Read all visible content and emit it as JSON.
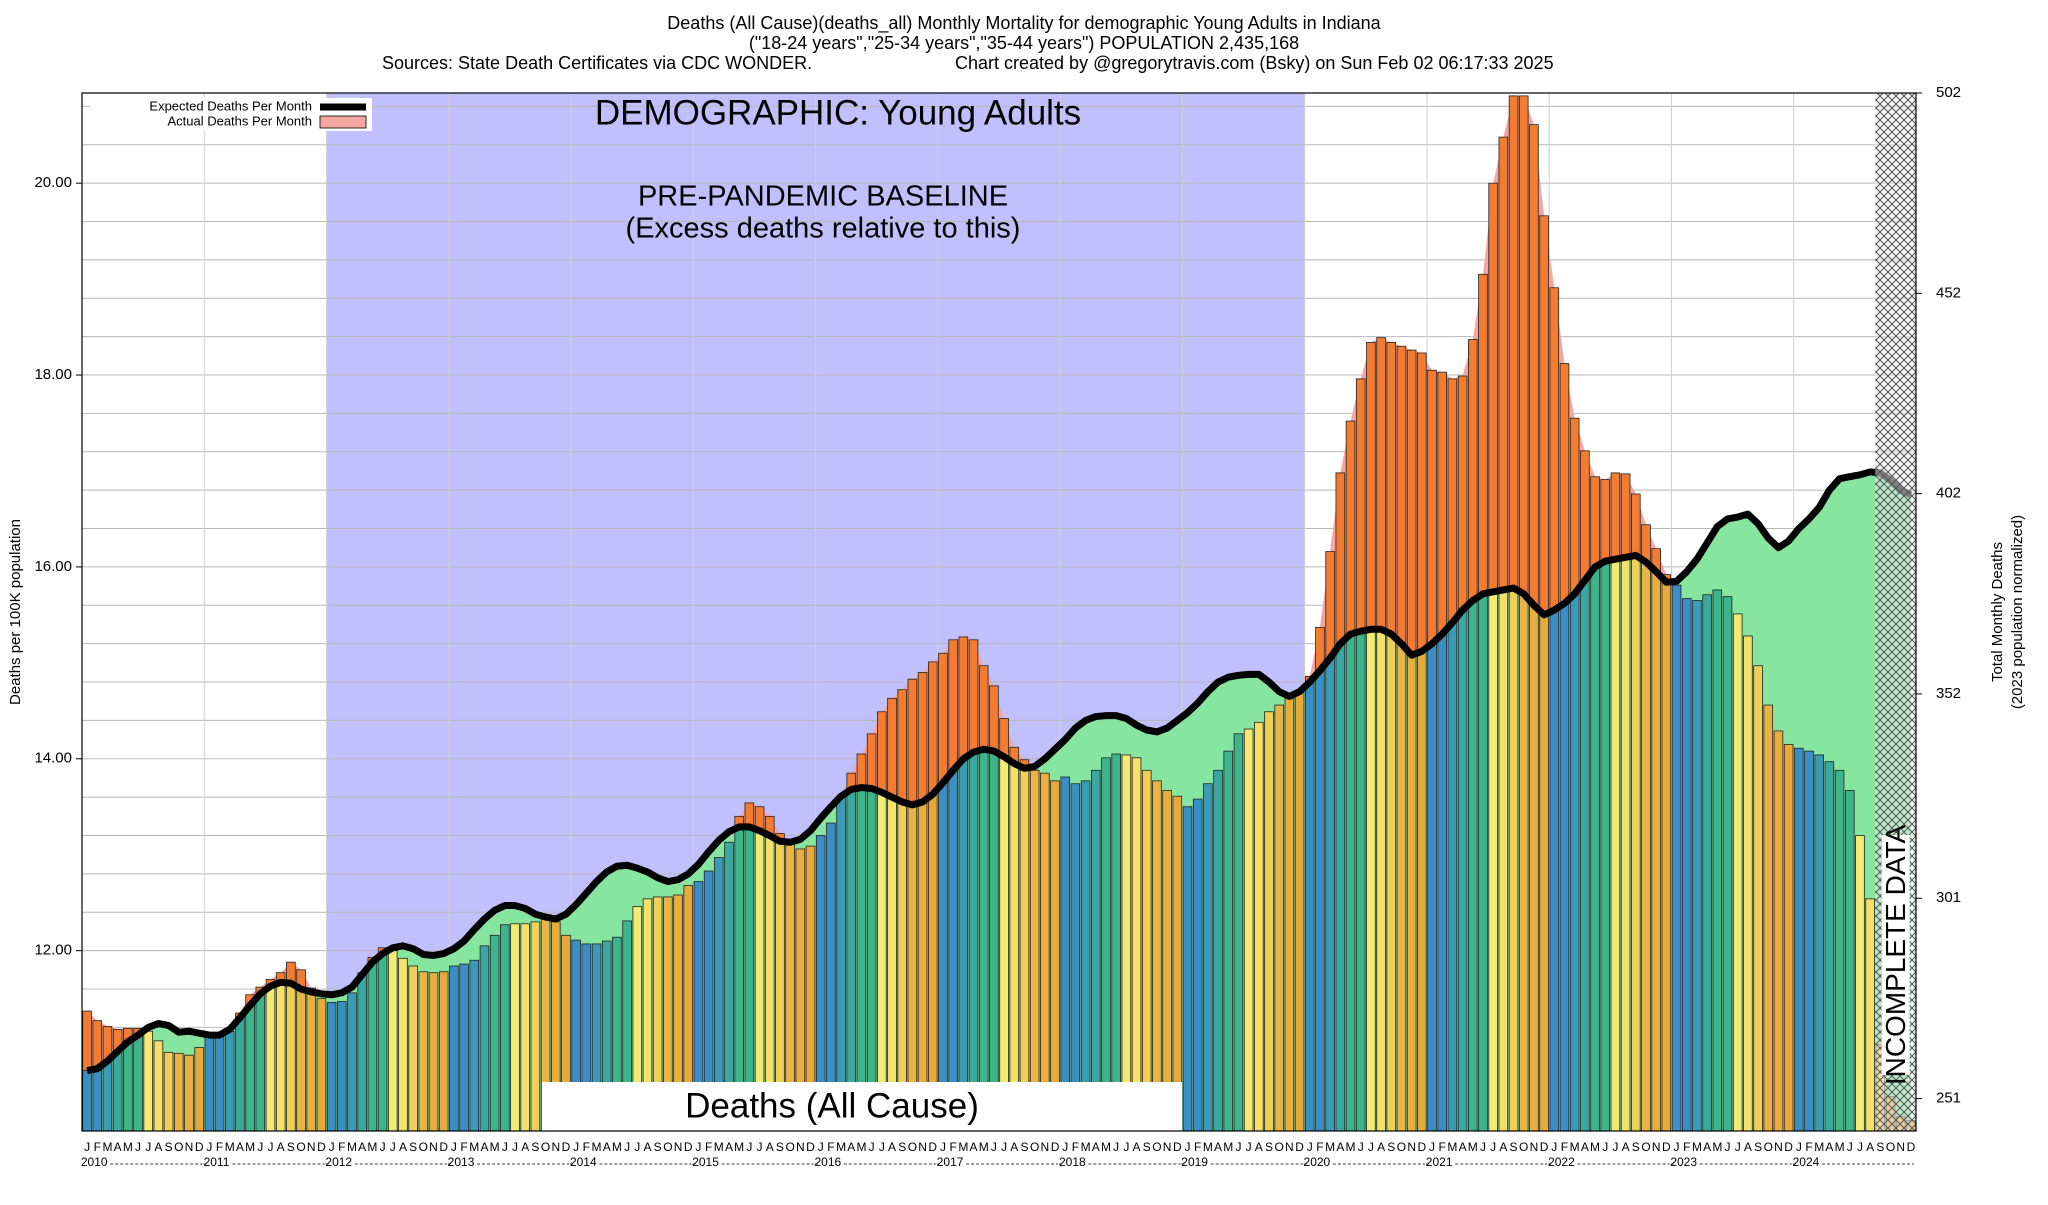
{
  "chart_data": {
    "type": "bar",
    "title": "Deaths (All Cause)(deaths_all) Monthly Mortality for demographic Young Adults in Indiana",
    "subtitle": "(\"18-24 years\",\"25-34 years\",\"35-44 years\") POPULATION 2,435,168",
    "sources": "Sources: State Death Certificates via CDC WONDER.",
    "credit": "Chart created by @gregorytravis.com (Bsky) on Sun Feb 02 06:17:33 2025",
    "demographic_label": "DEMOGRAPHIC: Young Adults",
    "cause_label": "Deaths (All Cause)",
    "baseline": {
      "label": "PRE-PANDEMIC BASELINE",
      "note": "(Excess deaths relative to this)",
      "from": 24,
      "to": 120,
      "color": "#c0c0ff"
    },
    "incomplete": {
      "label": "INCOMPLETE DATA",
      "from": 176
    },
    "ylabel": "Deaths per 100K population",
    "y2label": "Total Monthly Deaths",
    "y2sublabel": "(2023 population normalized)",
    "categories": [
      "J",
      "F",
      "M",
      "A",
      "M",
      "J",
      "J",
      "A",
      "S",
      "O",
      "N",
      "D",
      "J",
      "F",
      "M",
      "A",
      "M",
      "J",
      "J",
      "A",
      "S",
      "O",
      "N",
      "D",
      "J",
      "F",
      "M",
      "A",
      "M",
      "J",
      "J",
      "A",
      "S",
      "O",
      "N",
      "D",
      "J",
      "F",
      "M",
      "A",
      "M",
      "J",
      "J",
      "A",
      "S",
      "O",
      "N",
      "D",
      "J",
      "F",
      "M",
      "A",
      "M",
      "J",
      "J",
      "A",
      "S",
      "O",
      "N",
      "D",
      "J",
      "F",
      "M",
      "A",
      "M",
      "J",
      "J",
      "A",
      "S",
      "O",
      "N",
      "D",
      "J",
      "F",
      "M",
      "A",
      "M",
      "J",
      "J",
      "A",
      "S",
      "O",
      "N",
      "D",
      "J",
      "F",
      "M",
      "A",
      "M",
      "J",
      "J",
      "A",
      "S",
      "O",
      "N",
      "D",
      "J",
      "F",
      "M",
      "A",
      "M",
      "J",
      "J",
      "A",
      "S",
      "O",
      "N",
      "D",
      "J",
      "F",
      "M",
      "A",
      "M",
      "J",
      "J",
      "A",
      "S",
      "O",
      "N",
      "D",
      "J",
      "F",
      "M",
      "A",
      "M",
      "J",
      "J",
      "A",
      "S",
      "O",
      "N",
      "D",
      "J",
      "F",
      "M",
      "A",
      "M",
      "J",
      "J",
      "A",
      "S",
      "O",
      "N",
      "D",
      "J",
      "F",
      "M",
      "A",
      "M",
      "J",
      "J",
      "A",
      "S",
      "O",
      "N",
      "D",
      "J",
      "F",
      "M",
      "A",
      "M",
      "J",
      "J",
      "A",
      "S",
      "O",
      "N",
      "D",
      "J",
      "F",
      "M",
      "A",
      "M",
      "J",
      "J",
      "A",
      "S",
      "O",
      "N",
      "D"
    ],
    "years": [
      "2010",
      "2011",
      "2012",
      "2013",
      "2014",
      "2015",
      "2016",
      "2017",
      "2018",
      "2019",
      "2020",
      "2021",
      "2022",
      "2023",
      "2024"
    ],
    "month_colors": [
      "#3b8dc6",
      "#3b8dc6",
      "#3a9ab8",
      "#3aa8a0",
      "#3db48c",
      "#3db48c",
      "#f2ea72",
      "#f5e06a",
      "#f0cf58",
      "#e9b445",
      "#e9ad3e",
      "#e8a83a"
    ],
    "excess_color": "#f47c30",
    "deficit_color": "#86e6a0",
    "series": [
      {
        "name": "Expected Deaths Per Month",
        "color": "#000000",
        "values": [
          10.75,
          10.77,
          10.85,
          10.95,
          11.05,
          11.12,
          11.2,
          11.24,
          11.22,
          11.15,
          11.16,
          11.14,
          11.12,
          11.12,
          11.18,
          11.3,
          11.43,
          11.55,
          11.63,
          11.67,
          11.66,
          11.6,
          11.57,
          11.55,
          11.54,
          11.56,
          11.62,
          11.75,
          11.88,
          11.97,
          12.03,
          12.05,
          12.02,
          11.96,
          11.95,
          11.97,
          12.02,
          12.1,
          12.22,
          12.33,
          12.42,
          12.47,
          12.47,
          12.44,
          12.38,
          12.35,
          12.33,
          12.38,
          12.48,
          12.6,
          12.72,
          12.82,
          12.88,
          12.89,
          12.86,
          12.82,
          12.76,
          12.72,
          12.74,
          12.8,
          12.9,
          13.03,
          13.15,
          13.24,
          13.29,
          13.29,
          13.25,
          13.2,
          13.14,
          13.13,
          13.16,
          13.25,
          13.38,
          13.5,
          13.61,
          13.68,
          13.7,
          13.69,
          13.65,
          13.6,
          13.55,
          13.52,
          13.55,
          13.63,
          13.75,
          13.88,
          14.0,
          14.07,
          14.1,
          14.08,
          14.02,
          13.95,
          13.9,
          13.92,
          14.0,
          14.1,
          14.2,
          14.32,
          14.4,
          14.44,
          14.45,
          14.45,
          14.42,
          14.35,
          14.3,
          14.28,
          14.32,
          14.4,
          14.48,
          14.58,
          14.7,
          14.8,
          14.85,
          14.87,
          14.88,
          14.88,
          14.8,
          14.7,
          14.65,
          14.7,
          14.8,
          14.92,
          15.05,
          15.2,
          15.3,
          15.33,
          15.35,
          15.35,
          15.3,
          15.2,
          15.08,
          15.12,
          15.2,
          15.3,
          15.42,
          15.55,
          15.65,
          15.72,
          15.74,
          15.76,
          15.78,
          15.72,
          15.6,
          15.5,
          15.55,
          15.62,
          15.72,
          15.86,
          16.0,
          16.06,
          16.08,
          16.1,
          16.12,
          16.05,
          15.95,
          15.84,
          15.85,
          15.95,
          16.08,
          16.25,
          16.42,
          16.5,
          16.52,
          16.55,
          16.45,
          16.3,
          16.2,
          16.27,
          16.4,
          16.5,
          16.62,
          16.8,
          16.92,
          16.94,
          16.96,
          16.99,
          16.98,
          16.9,
          16.8,
          16.75
        ]
      },
      {
        "name": "Actual Deaths Per Month",
        "color": "#f4a6a0",
        "values": [
          11.37,
          11.27,
          11.21,
          11.18,
          11.19,
          11.19,
          11.16,
          11.06,
          10.94,
          10.93,
          10.91,
          10.99,
          11.1,
          11.1,
          11.16,
          11.35,
          11.54,
          11.62,
          11.7,
          11.77,
          11.88,
          11.8,
          11.61,
          11.5,
          11.46,
          11.47,
          11.56,
          11.77,
          11.93,
          12.03,
          12.0,
          11.92,
          11.84,
          11.78,
          11.77,
          11.78,
          11.84,
          11.86,
          11.9,
          12.05,
          12.16,
          12.27,
          12.28,
          12.28,
          12.3,
          12.34,
          12.3,
          12.16,
          12.11,
          12.07,
          12.07,
          12.1,
          12.14,
          12.31,
          12.46,
          12.54,
          12.56,
          12.56,
          12.58,
          12.68,
          12.72,
          12.83,
          12.97,
          13.13,
          13.4,
          13.54,
          13.5,
          13.4,
          13.22,
          13.13,
          13.06,
          13.09,
          13.2,
          13.33,
          13.61,
          13.85,
          14.05,
          14.26,
          14.49,
          14.63,
          14.72,
          14.83,
          14.9,
          15.01,
          15.1,
          15.24,
          15.27,
          15.24,
          14.97,
          14.76,
          14.42,
          14.12,
          13.99,
          13.88,
          13.85,
          13.77,
          13.81,
          13.74,
          13.77,
          13.88,
          14.01,
          14.05,
          14.04,
          14.01,
          13.88,
          13.77,
          13.67,
          13.61,
          13.5,
          13.58,
          13.74,
          13.88,
          14.08,
          14.26,
          14.31,
          14.38,
          14.49,
          14.56,
          14.63,
          14.69,
          14.86,
          15.37,
          16.16,
          16.98,
          17.52,
          17.96,
          18.34,
          18.39,
          18.34,
          18.3,
          18.26,
          18.23,
          18.05,
          18.03,
          17.96,
          17.99,
          18.37,
          19.05,
          20.0,
          20.48,
          20.91,
          20.91,
          20.61,
          19.66,
          18.91,
          18.12,
          17.55,
          17.21,
          16.94,
          16.91,
          16.98,
          16.97,
          16.76,
          16.44,
          16.19,
          15.92,
          15.81,
          15.67,
          15.65,
          15.71,
          15.76,
          15.69,
          15.51,
          15.28,
          14.97,
          14.56,
          14.29,
          14.15,
          14.11,
          14.08,
          14.04,
          13.97,
          13.88,
          13.67,
          13.2,
          12.54,
          11.02,
          10.48,
          10.27,
          10.23
        ]
      }
    ],
    "ylim": [
      10.12,
      20.94
    ],
    "yticks": [
      {
        "value": 12,
        "label": "12.00"
      },
      {
        "value": 14,
        "label": "14.00"
      },
      {
        "value": 16,
        "label": "16.00"
      },
      {
        "value": 18,
        "label": "18.00"
      },
      {
        "value": 20,
        "label": "20.00"
      }
    ],
    "grid_lines": [
      10.4,
      10.8,
      11.2,
      11.6,
      12,
      12.4,
      12.8,
      13.2,
      13.6,
      14,
      14.4,
      14.8,
      15.2,
      15.6,
      16,
      16.4,
      16.8,
      17.2,
      17.6,
      18,
      18.4,
      18.8,
      19.2,
      19.6,
      20,
      20.4,
      20.8
    ],
    "y2lim": [
      242.9,
      502
    ],
    "y2ticks": [
      251,
      301,
      352,
      402,
      452,
      502
    ],
    "legend": "upper left"
  }
}
